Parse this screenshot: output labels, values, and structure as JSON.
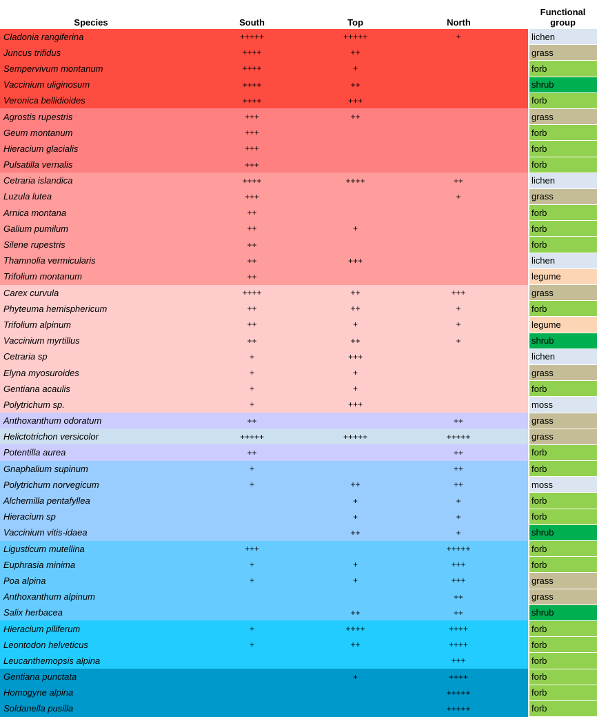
{
  "headers": [
    "Species",
    "South",
    "Top",
    "North",
    "Functional group"
  ],
  "group_colors": {
    "g1": "#ff4c40",
    "g2": "#ff8080",
    "g3": "#ff9c9c",
    "g4": "#ffcccc",
    "g5": "#ccccff",
    "g5b": "#cce0f0",
    "g6": "#99ccff",
    "g7": "#66ccff",
    "g8": "#22ccff",
    "g9": "#0099cc"
  },
  "fg_colors": {
    "lichen": "#dbe5f1",
    "grass": "#c4bd97",
    "forb": "#92d050",
    "shrub": "#00b050",
    "legume": "#fcd5b4",
    "moss": "#dbe5f1"
  },
  "rows": [
    {
      "species": "Cladonia rangiferina",
      "south": "+++++",
      "top": "+++++",
      "north": "+",
      "fg": "lichen",
      "g": "g1"
    },
    {
      "species": "Juncus trifidus",
      "south": "++++",
      "top": "++",
      "north": "",
      "fg": "grass",
      "g": "g1"
    },
    {
      "species": "Sempervivum montanum",
      "south": "++++",
      "top": "+",
      "north": "",
      "fg": "forb",
      "g": "g1"
    },
    {
      "species": "Vaccinium uliginosum",
      "south": "++++",
      "top": "++",
      "north": "",
      "fg": "shrub",
      "g": "g1"
    },
    {
      "species": "Veronica bellidioides",
      "south": "++++",
      "top": "+++",
      "north": "",
      "fg": "forb",
      "g": "g1"
    },
    {
      "species": "Agrostis rupestris",
      "south": "+++",
      "top": "++",
      "north": "",
      "fg": "grass",
      "g": "g2"
    },
    {
      "species": "Geum montanum",
      "south": "+++",
      "top": "",
      "north": "",
      "fg": "forb",
      "g": "g2"
    },
    {
      "species": "Hieracium glacialis",
      "south": "+++",
      "top": "",
      "north": "",
      "fg": "forb",
      "g": "g2"
    },
    {
      "species": "Pulsatilla vernalis",
      "south": "+++",
      "top": "",
      "north": "",
      "fg": "forb",
      "g": "g2"
    },
    {
      "species": "Cetraria islandica",
      "south": "++++",
      "top": "++++",
      "north": "++",
      "fg": "lichen",
      "g": "g3"
    },
    {
      "species": "Luzula lutea",
      "south": "+++",
      "top": "",
      "north": "+",
      "fg": "grass",
      "g": "g3"
    },
    {
      "species": "Arnica montana",
      "south": "++",
      "top": "",
      "north": "",
      "fg": "forb",
      "g": "g3"
    },
    {
      "species": "Galium pumilum",
      "south": "++",
      "top": "+",
      "north": "",
      "fg": "forb",
      "g": "g3"
    },
    {
      "species": "Silene rupestris",
      "south": "++",
      "top": "",
      "north": "",
      "fg": "forb",
      "g": "g3"
    },
    {
      "species": "Thamnolia vermicularis",
      "south": "++",
      "top": "+++",
      "north": "",
      "fg": "lichen",
      "g": "g3"
    },
    {
      "species": "Trifolium montanum",
      "south": "++",
      "top": "",
      "north": "",
      "fg": "legume",
      "g": "g3"
    },
    {
      "species": "Carex curvula",
      "south": "++++",
      "top": "++",
      "north": "+++",
      "fg": "grass",
      "g": "g4"
    },
    {
      "species": "Phyteuma hemisphericum",
      "south": "++",
      "top": "++",
      "north": "+",
      "fg": "forb",
      "g": "g4"
    },
    {
      "species": "Trifolium alpinum",
      "south": "++",
      "top": "+",
      "north": "+",
      "fg": "legume",
      "g": "g4"
    },
    {
      "species": "Vaccinium myrtillus",
      "south": "++",
      "top": "++",
      "north": "+",
      "fg": "shrub",
      "g": "g4"
    },
    {
      "species": "Cetraria sp",
      "south": "+",
      "top": "+++",
      "north": "",
      "fg": "lichen",
      "g": "g4"
    },
    {
      "species": "Elyna myosuroides",
      "south": "+",
      "top": "+",
      "north": "",
      "fg": "grass",
      "g": "g4"
    },
    {
      "species": "Gentiana acaulis",
      "south": "+",
      "top": "+",
      "north": "",
      "fg": "forb",
      "g": "g4"
    },
    {
      "species": "Polytrichum sp.",
      "south": "+",
      "top": "+++",
      "north": "",
      "fg": "moss",
      "g": "g4"
    },
    {
      "species": "Anthoxanthum odoratum",
      "south": "++",
      "top": "",
      "north": "++",
      "fg": "grass",
      "g": "g5"
    },
    {
      "species": "Helictotrichon versicolor",
      "south": "+++++",
      "top": "+++++",
      "north": "+++++",
      "fg": "grass",
      "g": "g5b"
    },
    {
      "species": "Potentilla aurea",
      "south": "++",
      "top": "",
      "north": "++",
      "fg": "forb",
      "g": "g5"
    },
    {
      "species": "Gnaphalium supinum",
      "south": "+",
      "top": "",
      "north": "++",
      "fg": "forb",
      "g": "g6"
    },
    {
      "species": "Polytrichum norvegicum",
      "south": "+",
      "top": "++",
      "north": "++",
      "fg": "moss",
      "g": "g6"
    },
    {
      "species": "Alchemilla pentafyllea",
      "south": "",
      "top": "+",
      "north": "+",
      "fg": "forb",
      "g": "g6"
    },
    {
      "species": "Hieracium sp",
      "south": "",
      "top": "+",
      "north": "+",
      "fg": "forb",
      "g": "g6"
    },
    {
      "species": "Vaccinium vitis-idaea",
      "south": "",
      "top": "++",
      "north": "+",
      "fg": "shrub",
      "g": "g6"
    },
    {
      "species": "Ligusticum mutellina",
      "south": "+++",
      "top": "",
      "north": "+++++",
      "fg": "forb",
      "g": "g7"
    },
    {
      "species": "Euphrasia minima",
      "south": "+",
      "top": "+",
      "north": "+++",
      "fg": "forb",
      "g": "g7"
    },
    {
      "species": "Poa alpina",
      "south": "+",
      "top": "+",
      "north": "+++",
      "fg": "grass",
      "g": "g7"
    },
    {
      "species": "Anthoxanthum alpinum",
      "south": "",
      "top": "",
      "north": "++",
      "fg": "grass",
      "g": "g7"
    },
    {
      "species": "Salix herbacea",
      "south": "",
      "top": "++",
      "north": "++",
      "fg": "shrub",
      "g": "g7"
    },
    {
      "species": "Hieracium piliferum",
      "south": "+",
      "top": "++++",
      "north": "++++",
      "fg": "forb",
      "g": "g8"
    },
    {
      "species": "Leontodon helveticus",
      "south": "+",
      "top": "++",
      "north": "++++",
      "fg": "forb",
      "g": "g8"
    },
    {
      "species": "Leucanthemopsis alpina",
      "south": "",
      "top": "",
      "north": "+++",
      "fg": "forb",
      "g": "g8"
    },
    {
      "species": "Gentiana punctata",
      "south": "",
      "top": "+",
      "north": "++++",
      "fg": "forb",
      "g": "g9"
    },
    {
      "species": "Homogyne alpina",
      "south": "",
      "top": "",
      "north": "+++++",
      "fg": "forb",
      "g": "g9"
    },
    {
      "species": "Soldanella pusilla",
      "south": "",
      "top": "",
      "north": "+++++",
      "fg": "forb",
      "g": "g9"
    }
  ]
}
